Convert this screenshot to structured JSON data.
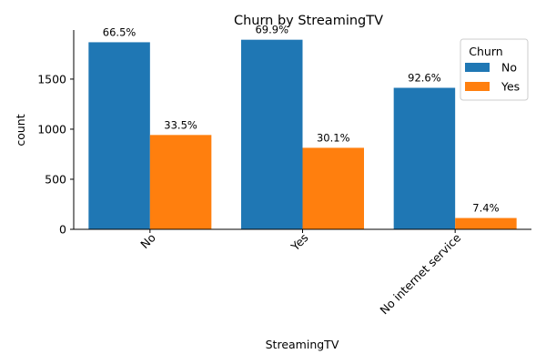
{
  "chart_data": {
    "type": "bar",
    "title": "Churn by StreamingTV",
    "xlabel": "StreamingTV",
    "ylabel": "count",
    "categories": [
      "No",
      "Yes",
      "No internet service"
    ],
    "series": [
      {
        "name": "No",
        "values": [
          1868,
          1893,
          1413
        ],
        "color": "#1f77b4",
        "labels": [
          "66.5%",
          "69.9%",
          "92.6%"
        ]
      },
      {
        "name": "Yes",
        "values": [
          942,
          814,
          113
        ],
        "color": "#ff7f0e",
        "labels": [
          "33.5%",
          "30.1%",
          "7.4%"
        ]
      }
    ],
    "ylim": [
      0,
      1990
    ],
    "yticks": [
      0,
      500,
      1000,
      1500
    ],
    "legend": {
      "title": "Churn",
      "placement": "top-right"
    },
    "grid": false
  }
}
